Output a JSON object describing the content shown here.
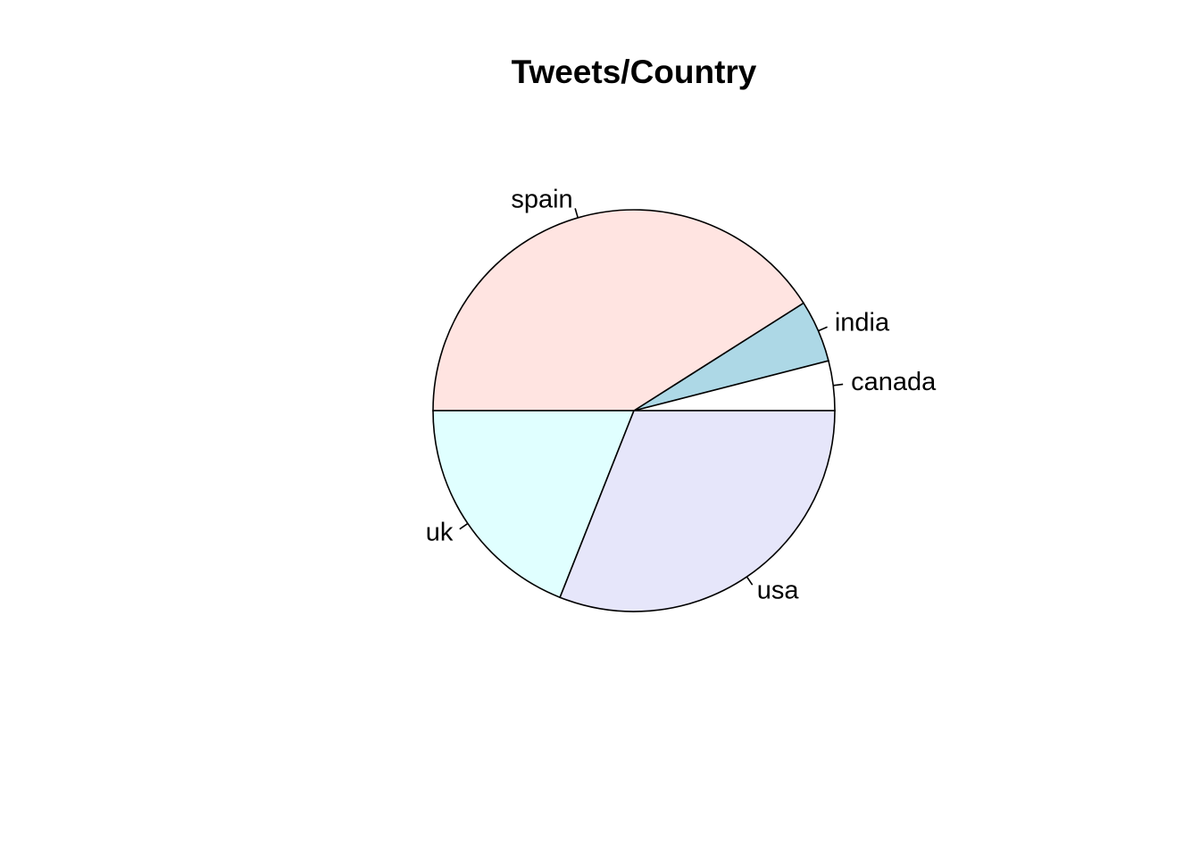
{
  "chart_data": {
    "type": "pie",
    "title": "Tweets/Country",
    "direction": "counterclockwise",
    "start_angle_deg": 0,
    "slices": [
      {
        "label": "canada",
        "value": 4,
        "color": "#ffffff"
      },
      {
        "label": "india",
        "value": 5,
        "color": "#add8e6"
      },
      {
        "label": "spain",
        "value": 41,
        "color": "#ffe4e1"
      },
      {
        "label": "uk",
        "value": 19,
        "color": "#e0ffff"
      },
      {
        "label": "usa",
        "value": 31,
        "color": "#e6e6fa"
      }
    ]
  }
}
